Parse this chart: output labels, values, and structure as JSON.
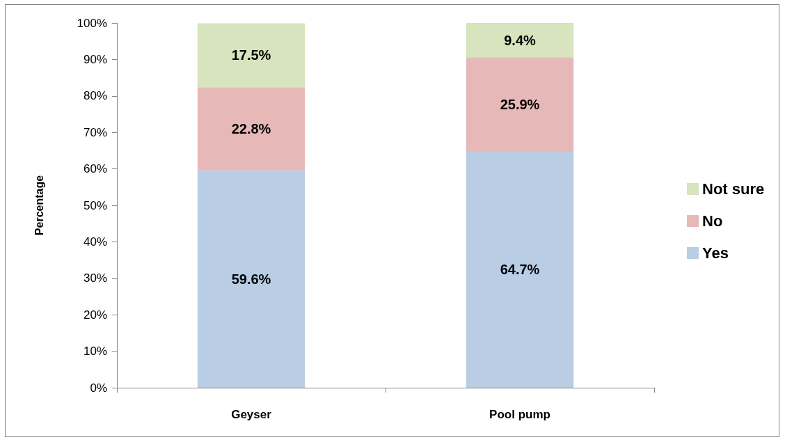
{
  "chart_data": {
    "type": "bar",
    "stacked": true,
    "ylabel": "Percentage",
    "categories": [
      "Geyser",
      "Pool pump"
    ],
    "series": [
      {
        "name": "Yes",
        "color": "#b9cde5",
        "values": [
          59.6,
          64.7
        ],
        "value_labels": [
          "59.6%",
          "64.7%"
        ]
      },
      {
        "name": "No",
        "color": "#e6b9b8",
        "values": [
          22.8,
          25.9
        ],
        "value_labels": [
          "22.8%",
          "25.9%"
        ]
      },
      {
        "name": "Not sure",
        "color": "#d7e4bd",
        "values": [
          17.5,
          9.4
        ],
        "value_labels": [
          "17.5%",
          "9.4%"
        ]
      }
    ],
    "ylim": [
      0,
      100
    ],
    "yticks": [
      {
        "value": 0,
        "label": "0%"
      },
      {
        "value": 10,
        "label": "10%"
      },
      {
        "value": 20,
        "label": "20%"
      },
      {
        "value": 30,
        "label": "30%"
      },
      {
        "value": 40,
        "label": "40%"
      },
      {
        "value": 50,
        "label": "50%"
      },
      {
        "value": 60,
        "label": "60%"
      },
      {
        "value": 70,
        "label": "70%"
      },
      {
        "value": 80,
        "label": "80%"
      },
      {
        "value": 90,
        "label": "90%"
      },
      {
        "value": 100,
        "label": "100%"
      }
    ],
    "grid": false,
    "legend": "right"
  }
}
